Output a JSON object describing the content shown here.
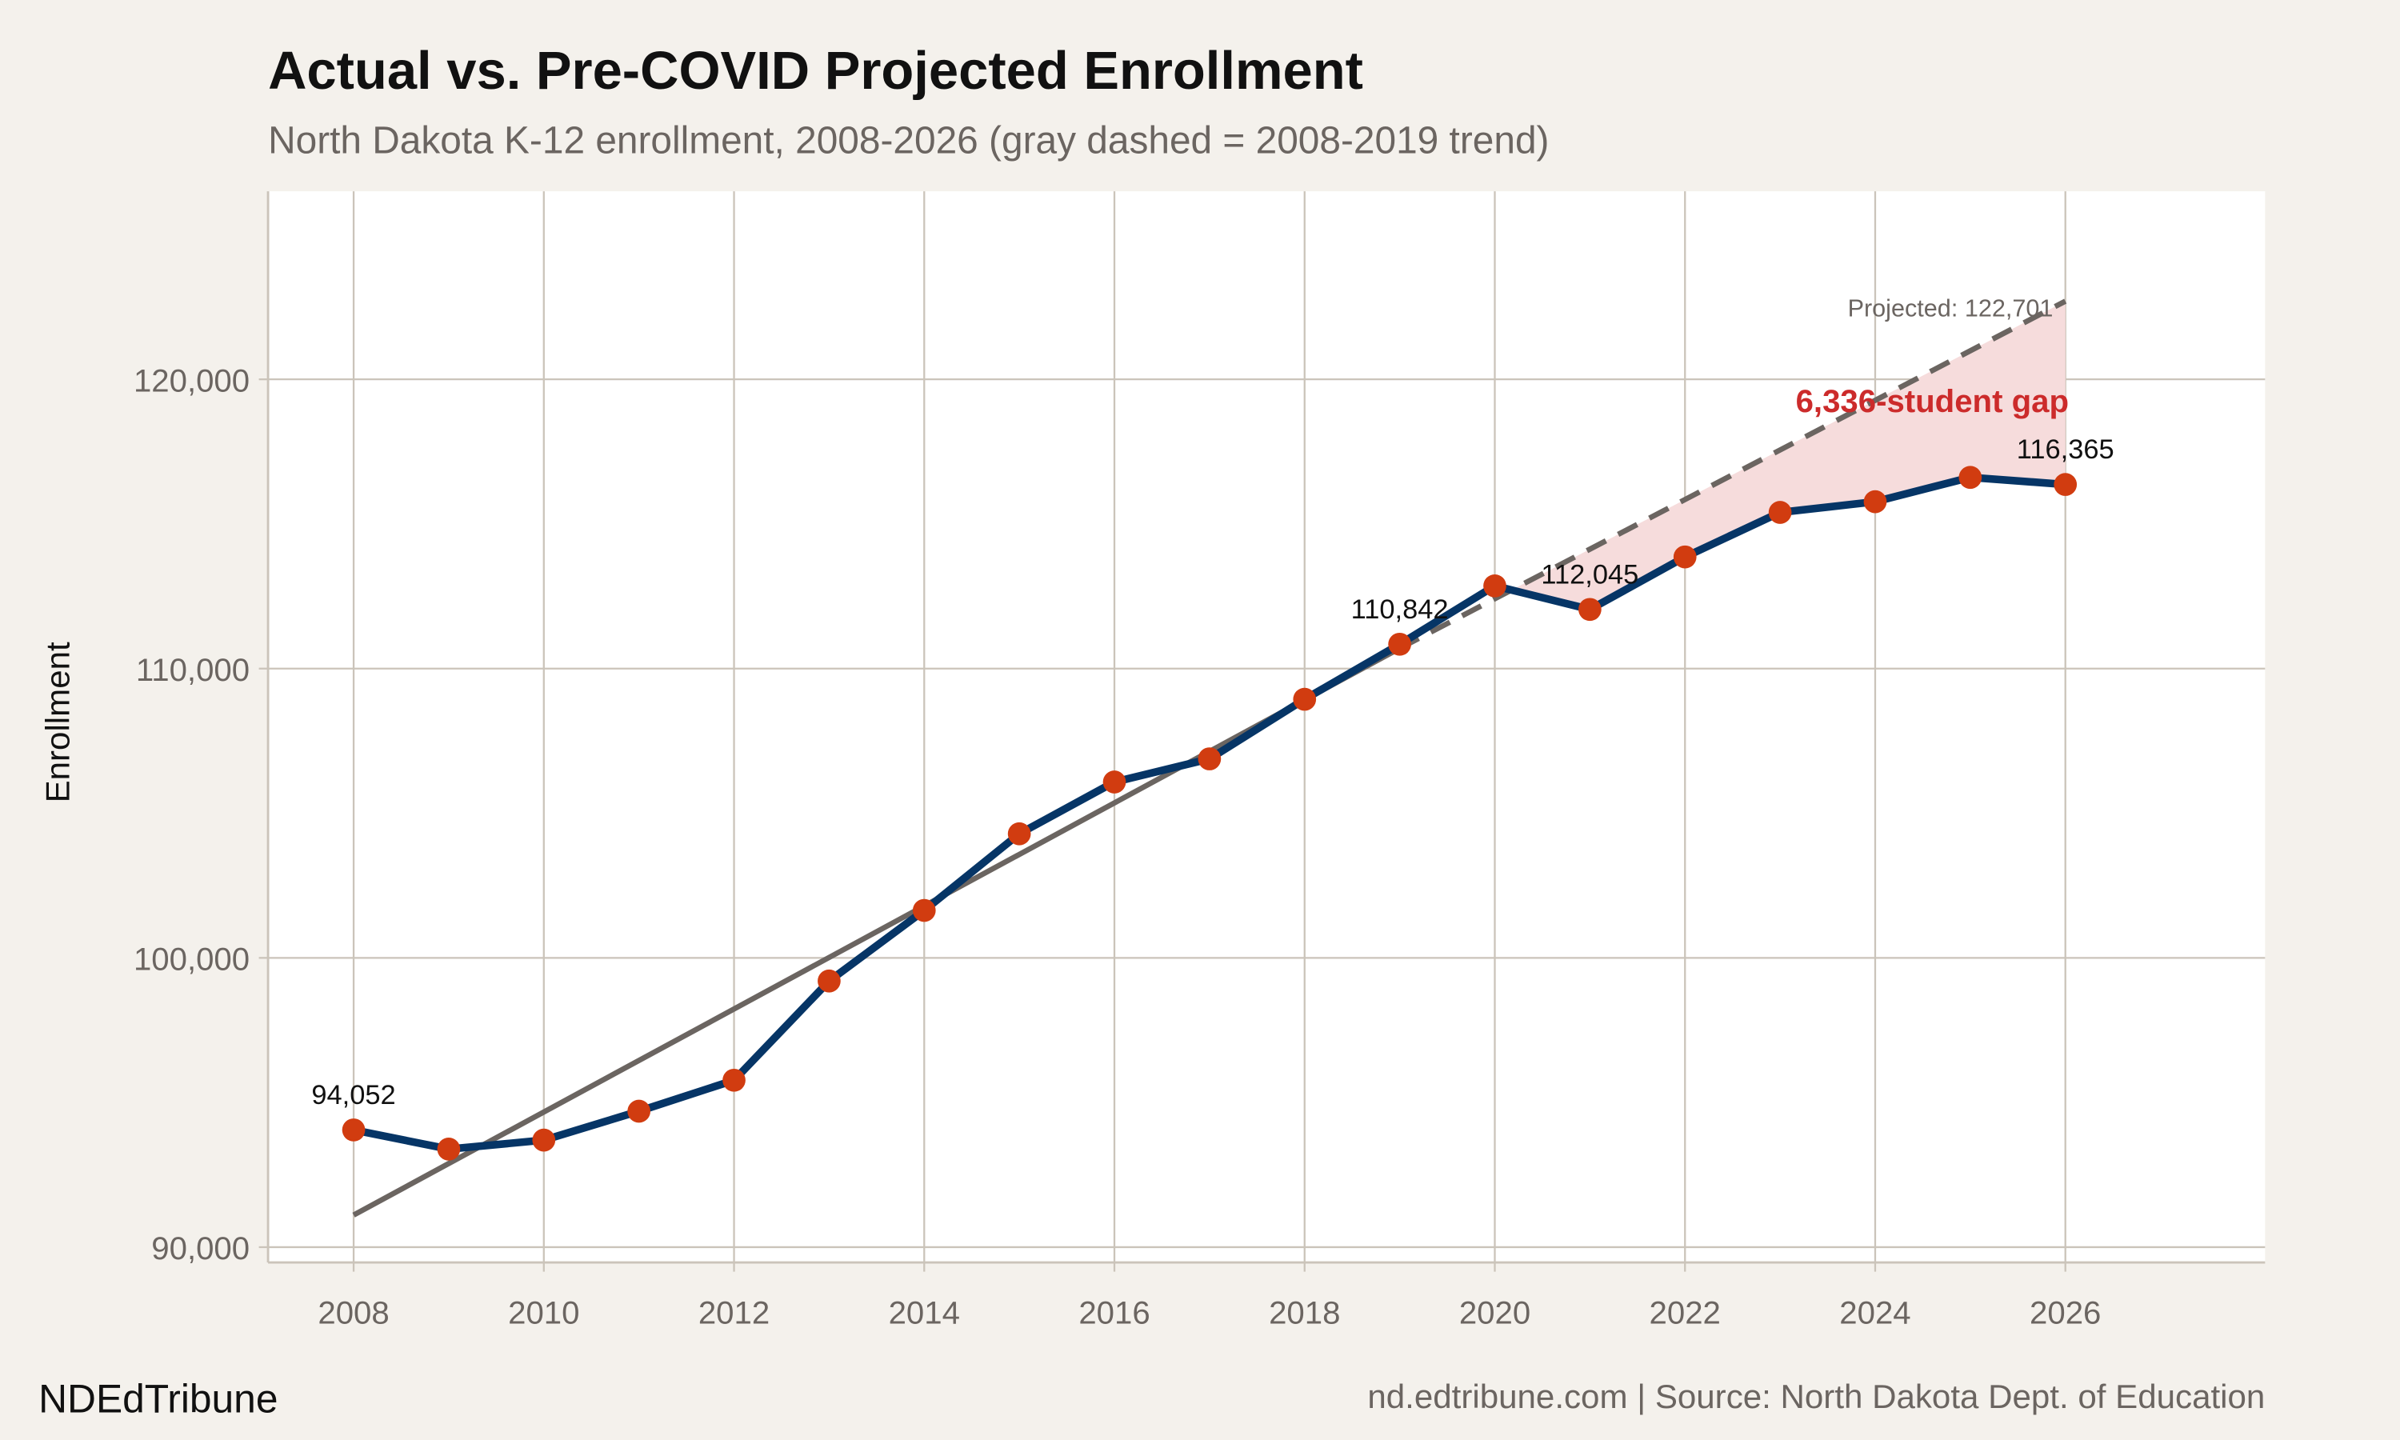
{
  "chart_data": {
    "type": "line",
    "title": "Actual vs. Pre-COVID Projected Enrollment",
    "subtitle": "North Dakota K-12 enrollment, 2008-2026 (gray dashed = 2008-2019 trend)",
    "xlabel": "",
    "ylabel": "Enrollment",
    "xlim": [
      2007.1,
      2028.1
    ],
    "ylim": [
      89470,
      126500
    ],
    "grid": true,
    "x_ticks": [
      2008,
      2010,
      2012,
      2014,
      2016,
      2018,
      2020,
      2022,
      2024,
      2026
    ],
    "x_tick_labels": [
      "2008",
      "2010",
      "2012",
      "2014",
      "2016",
      "2018",
      "2020",
      "2022",
      "2024",
      "2026"
    ],
    "y_ticks": [
      90000,
      100000,
      110000,
      120000
    ],
    "y_tick_labels": [
      "90,000",
      "100,000",
      "110,000",
      "120,000"
    ],
    "series": [
      {
        "name": "Actual enrollment",
        "color": "#063566",
        "marker_color": "#d13c10",
        "x": [
          2008,
          2009,
          2010,
          2011,
          2012,
          2013,
          2014,
          2015,
          2016,
          2017,
          2018,
          2019,
          2020,
          2021,
          2022,
          2023,
          2024,
          2025,
          2026
        ],
        "values": [
          94052,
          93390,
          93700,
          94700,
          95770,
          99200,
          101640,
          104290,
          106080,
          106880,
          108940,
          110842,
          112860,
          112045,
          113860,
          115400,
          115770,
          116610,
          116365
        ]
      },
      {
        "name": "2008-2019 trend",
        "color": "#6b6561",
        "solid_x": [
          2008,
          2019
        ],
        "solid_values": [
          91110,
          110700
        ],
        "dashed_x": [
          2019,
          2026
        ],
        "dashed_values": [
          110700,
          122701
        ]
      }
    ],
    "gap_fill": {
      "from": 2020,
      "to": 2026,
      "color": "#f6dcdc"
    },
    "data_labels": [
      {
        "x": 2008,
        "value": 94052,
        "text": "94,052"
      },
      {
        "x": 2019,
        "value": 110842,
        "text": "110,842"
      },
      {
        "x": 2021,
        "value": 112045,
        "text": "112,045"
      },
      {
        "x": 2026,
        "value": 116365,
        "text": "116,365"
      }
    ],
    "annotations": {
      "projected": "Projected: 122,701",
      "gap": "6,336-student gap",
      "gap_color": "#cc2b2b"
    }
  },
  "footer": {
    "brand": "NDEdTribune",
    "source": "nd.edtribune.com | Source: North Dakota Dept. of Education"
  }
}
